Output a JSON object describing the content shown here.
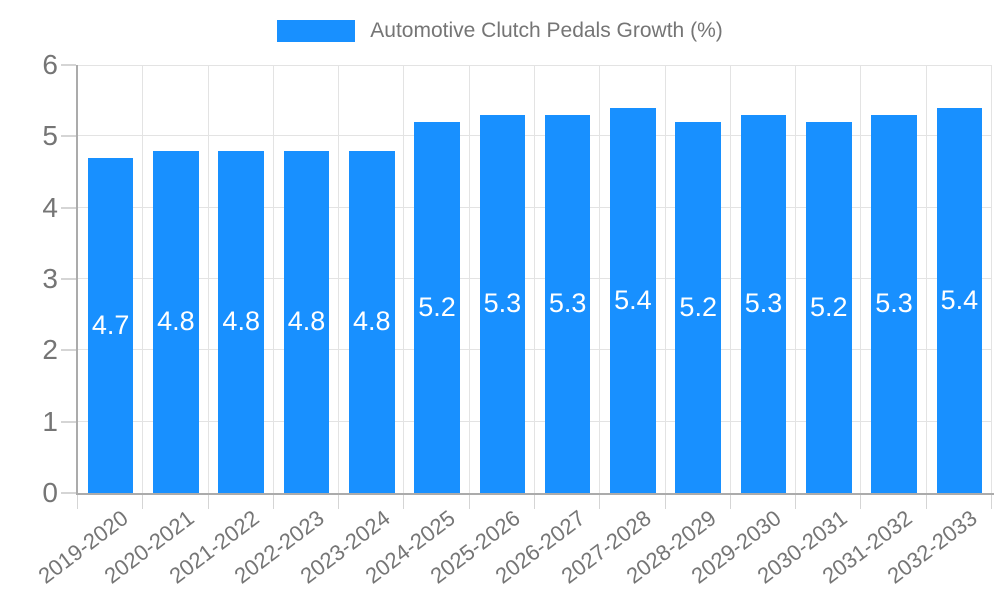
{
  "page": {
    "background": "#ffffff"
  },
  "legend": {
    "label": "Automotive Clutch Pedals Growth (%)",
    "swatch_color": "#1890ff"
  },
  "chart_data": {
    "type": "bar",
    "title": "Automotive Clutch Pedals Growth (%)",
    "categories": [
      "2019-2020",
      "2020-2021",
      "2021-2022",
      "2022-2023",
      "2023-2024",
      "2024-2025",
      "2025-2026",
      "2026-2027",
      "2027-2028",
      "2028-2029",
      "2029-2030",
      "2030-2031",
      "2031-2032",
      "2032-2033"
    ],
    "values": [
      4.7,
      4.8,
      4.8,
      4.8,
      4.8,
      5.2,
      5.3,
      5.3,
      5.4,
      5.2,
      5.3,
      5.2,
      5.3,
      5.4
    ],
    "value_labels": [
      "4.7",
      "4.8",
      "4.8",
      "4.8",
      "4.8",
      "5.2",
      "5.3",
      "5.3",
      "5.4",
      "5.2",
      "5.3",
      "5.2",
      "5.3",
      "5.4"
    ],
    "xlabel": "",
    "ylabel": "",
    "ylim": [
      0,
      6
    ],
    "yticks": [
      0,
      1,
      2,
      3,
      4,
      5,
      6
    ],
    "grid": true,
    "legend_position": "top-center",
    "bar_color": "#1890ff",
    "value_label_color": "#ffffff",
    "axis_text_color": "#757575",
    "grid_color": "#e3e3e3",
    "axis_line_color": "#ababab",
    "tick_color": "#d5d5d5"
  }
}
